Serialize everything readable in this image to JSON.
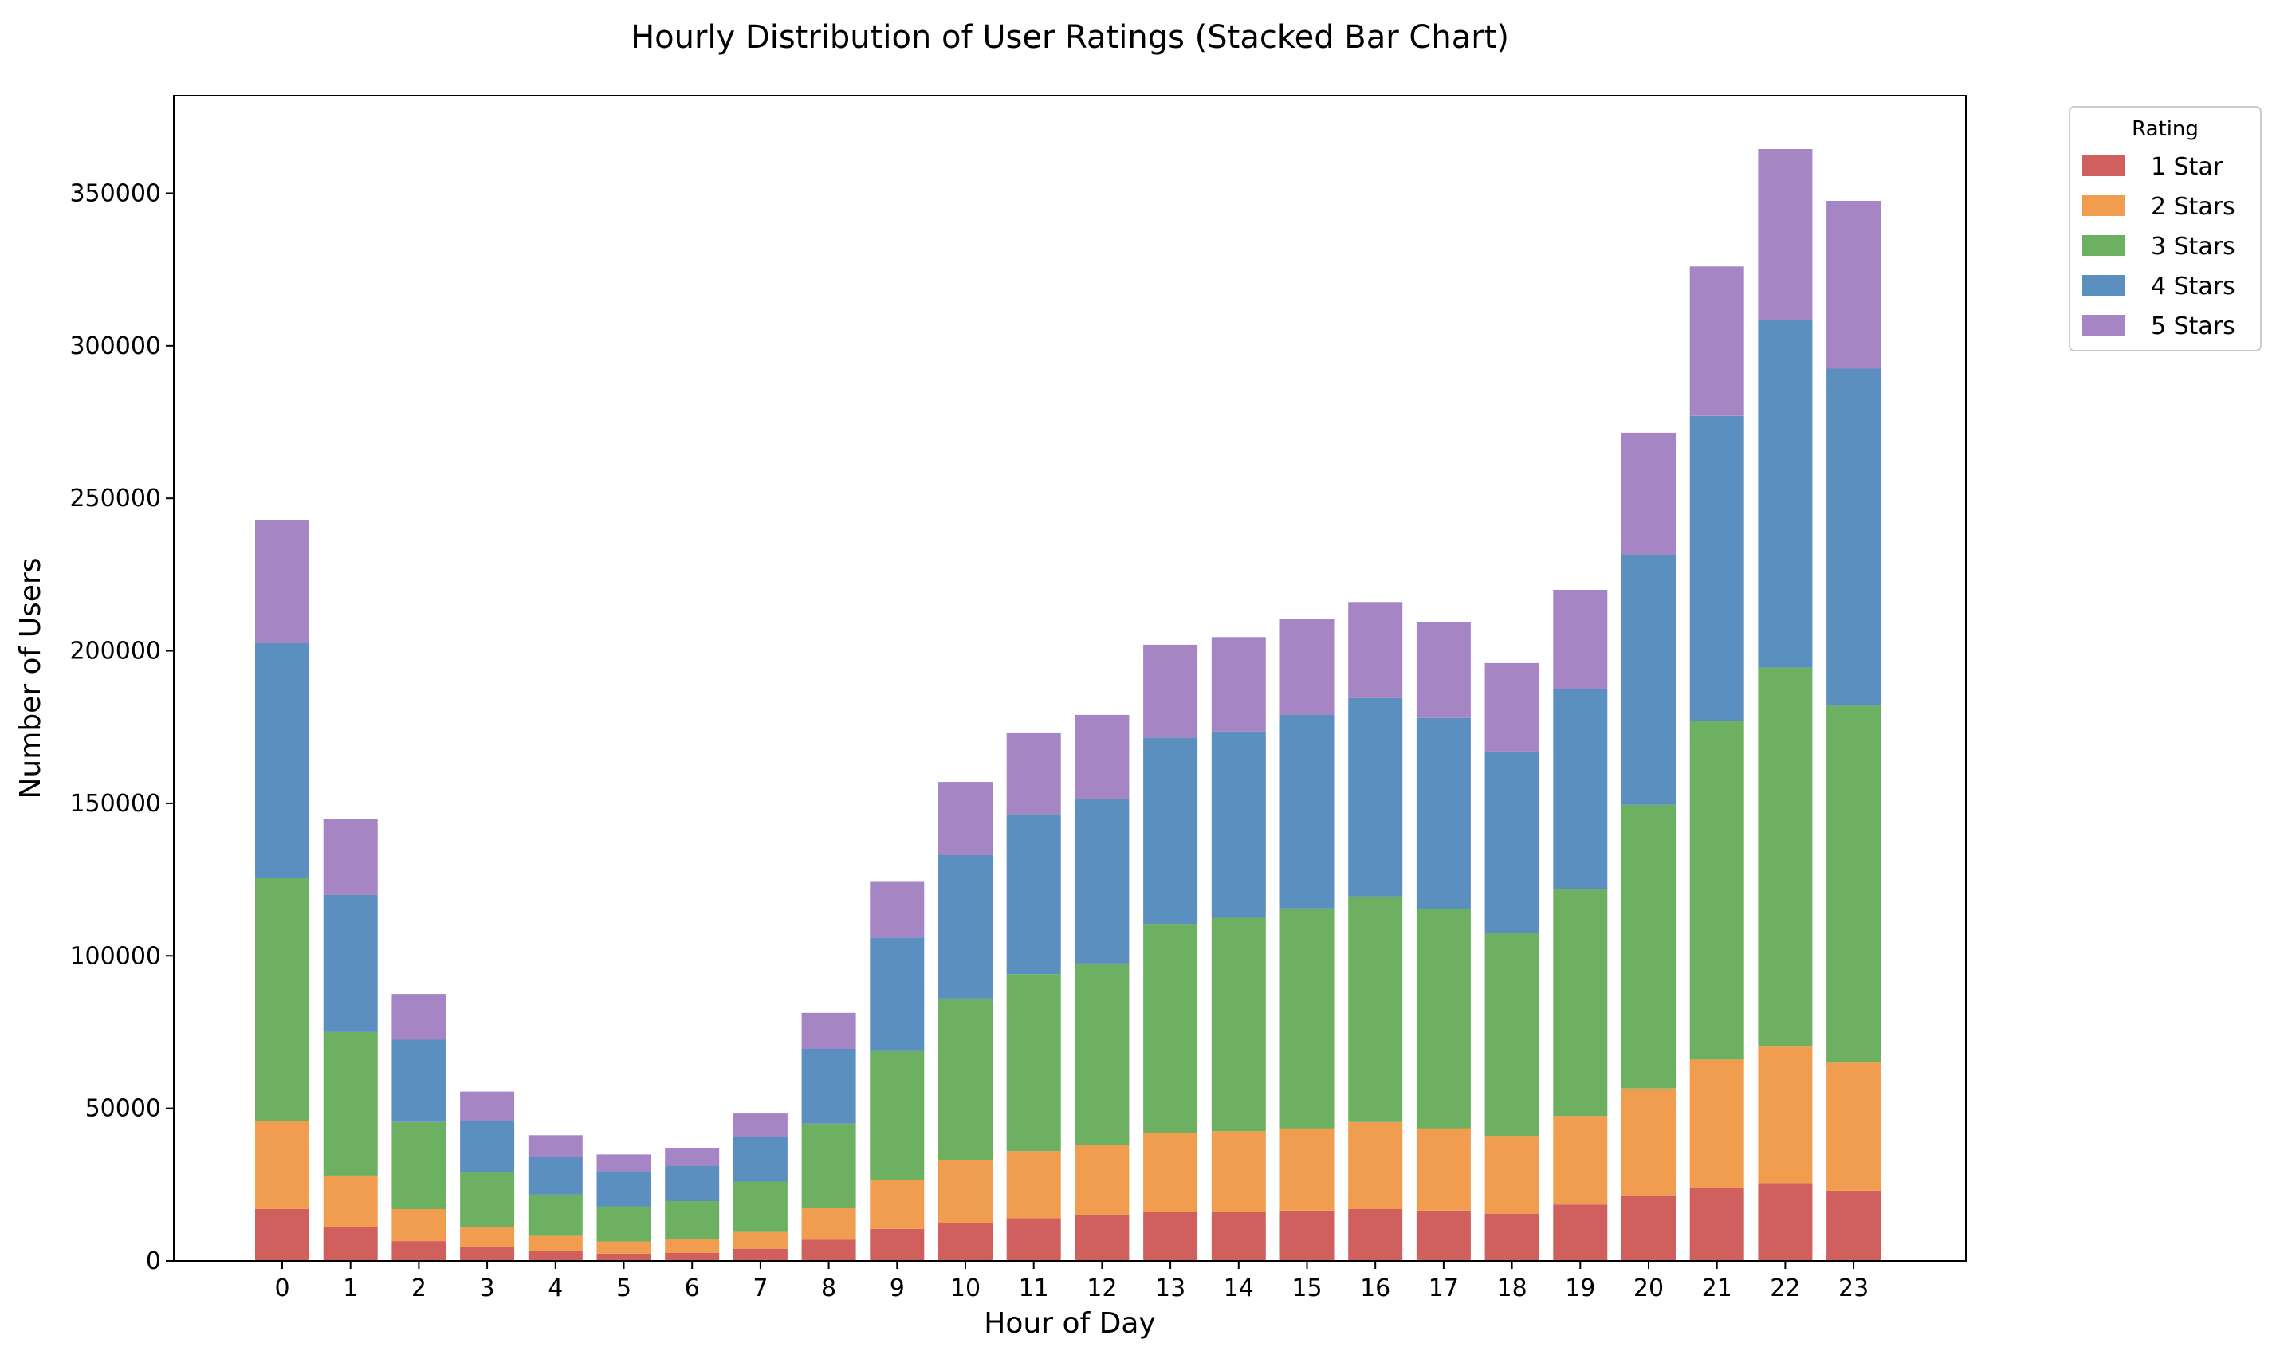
{
  "chart_data": {
    "type": "bar",
    "stacked": true,
    "title": "Hourly Distribution of User Ratings (Stacked Bar Chart)",
    "xlabel": "Hour of Day",
    "ylabel": "Number of Users",
    "categories": [
      "0",
      "1",
      "2",
      "3",
      "4",
      "5",
      "6",
      "7",
      "8",
      "9",
      "10",
      "11",
      "12",
      "13",
      "14",
      "15",
      "16",
      "17",
      "18",
      "19",
      "20",
      "21",
      "22",
      "23"
    ],
    "ylim": [
      0,
      382000
    ],
    "yticks": [
      0,
      50000,
      100000,
      150000,
      200000,
      250000,
      300000,
      350000
    ],
    "ytick_labels": [
      "0",
      "50000",
      "100000",
      "150000",
      "200000",
      "250000",
      "300000",
      "350000"
    ],
    "legend": {
      "title": "Rating",
      "position": "outside-top-right"
    },
    "grid": false,
    "series": [
      {
        "name": "1 Star",
        "color": "#d0605e",
        "values": [
          17000,
          11000,
          6500,
          4500,
          3200,
          2400,
          2600,
          4000,
          7000,
          10500,
          12500,
          14000,
          15000,
          16000,
          16000,
          16500,
          17000,
          16500,
          15500,
          18500,
          21500,
          24000,
          25500,
          23000
        ]
      },
      {
        "name": "2 Stars",
        "color": "#f19d50",
        "values": [
          29000,
          17000,
          10500,
          6500,
          5000,
          4000,
          4500,
          5500,
          10500,
          16000,
          20500,
          22000,
          23000,
          26000,
          26500,
          27000,
          28500,
          27000,
          25500,
          29000,
          35000,
          42000,
          45000,
          42000
        ]
      },
      {
        "name": "3 Stars",
        "color": "#6db061",
        "values": [
          79500,
          47000,
          28500,
          18000,
          13500,
          11500,
          12500,
          16500,
          27500,
          42500,
          53000,
          58000,
          59500,
          68500,
          70000,
          72000,
          74000,
          72000,
          66500,
          74500,
          93000,
          111000,
          124000,
          117000
        ]
      },
      {
        "name": "4 Stars",
        "color": "#5b8fbf",
        "values": [
          77000,
          45000,
          27000,
          17000,
          12500,
          11500,
          11500,
          14500,
          24500,
          37000,
          47000,
          52500,
          54000,
          61000,
          61000,
          63500,
          65000,
          62500,
          59500,
          65500,
          82000,
          100000,
          114000,
          110500
        ]
      },
      {
        "name": "5 Stars",
        "color": "#a585c4",
        "values": [
          40500,
          25000,
          15000,
          9500,
          7000,
          5500,
          6000,
          7800,
          11800,
          18500,
          24000,
          26500,
          27500,
          30500,
          31000,
          31500,
          31500,
          31500,
          29000,
          32500,
          40000,
          49000,
          56000,
          55000
        ]
      }
    ]
  }
}
